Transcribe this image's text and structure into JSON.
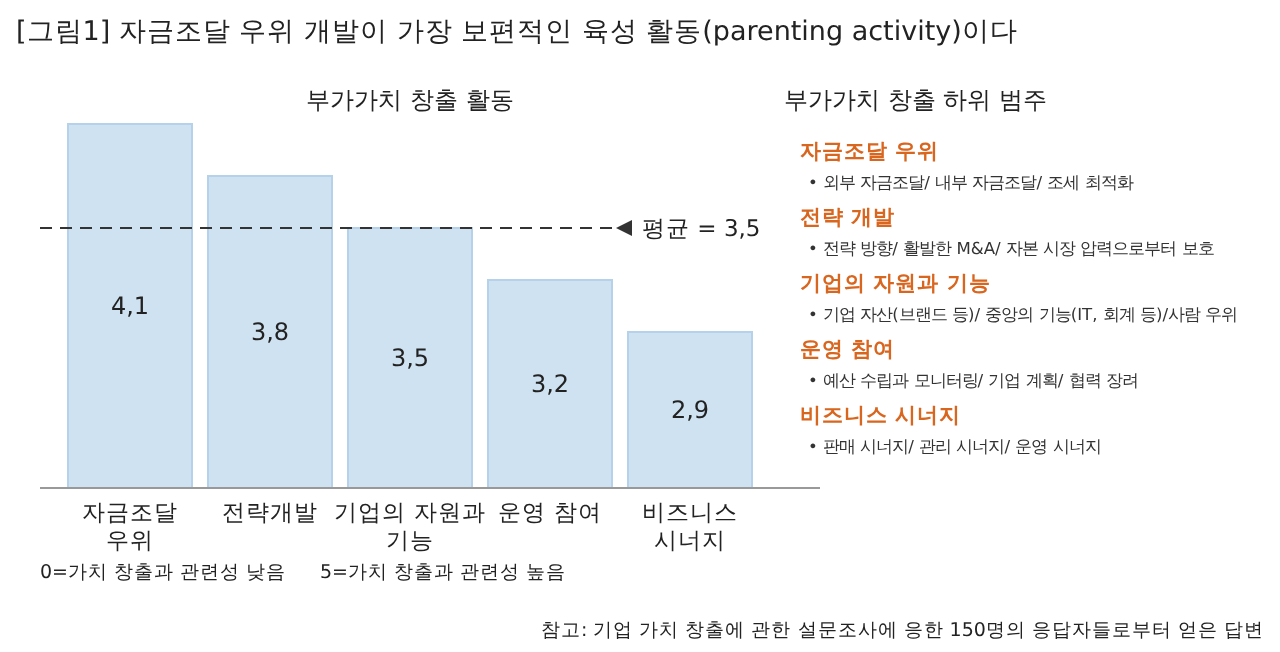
{
  "chart_data": [
    {
      "type": "bar",
      "title": "[그림1] 자금조달 우위 개발이 가장 보편적인 육성 활동(parenting activity)이다",
      "subtitle": "부가가치 창출 활동",
      "categories": [
        "자금조달\n우위",
        "전략개발",
        "기업의 자원과\n기능",
        "운영 참여",
        "비즈니스\n시너지"
      ],
      "values": [
        4.1,
        3.8,
        3.5,
        3.2,
        2.9
      ],
      "value_labels": [
        "4,1",
        "3,8",
        "3,5",
        "3,2",
        "2,9"
      ],
      "color": "#cfe2f1",
      "ylim": [
        2,
        4.1
      ],
      "tick_labels": "x",
      "ref_lines": [
        {
          "axis": "y",
          "value": 3.5,
          "label": "평균 = 3,5",
          "line_style": "dashed",
          "color": "#333333"
        }
      ],
      "annotations": [
        "0=가치 창출과 관련성 낮음",
        "5=가치 창출과 관련성 높음",
        "참고: 기업 가치 창출에 관한 설문조사에 응한 150명의 응답자들로부터 얻은 답변"
      ]
    },
    {
      "type": "other",
      "title": "부가가치 창출 하위 범주",
      "annotations": [
        "자금조달 우위",
        "• 외부 자금조달/ 내부 자금조달/ 조세 최적화",
        "전략 개발",
        "• 전략 방향/ 활발한 M&A/ 자본 시장 압력으로부터 보호",
        "기업의 자원과 기능",
        "• 기업 자산(브랜드 등)/ 중앙의 기능(IT, 회계 등)/사람 우위",
        "운영 참여",
        "• 예산 수립과 모니터링/ 기업 계획/ 협력 장려",
        "비즈니스 시너지",
        "• 판매 시너지/ 관리 시너지/ 운영 시너지"
      ]
    }
  ]
}
